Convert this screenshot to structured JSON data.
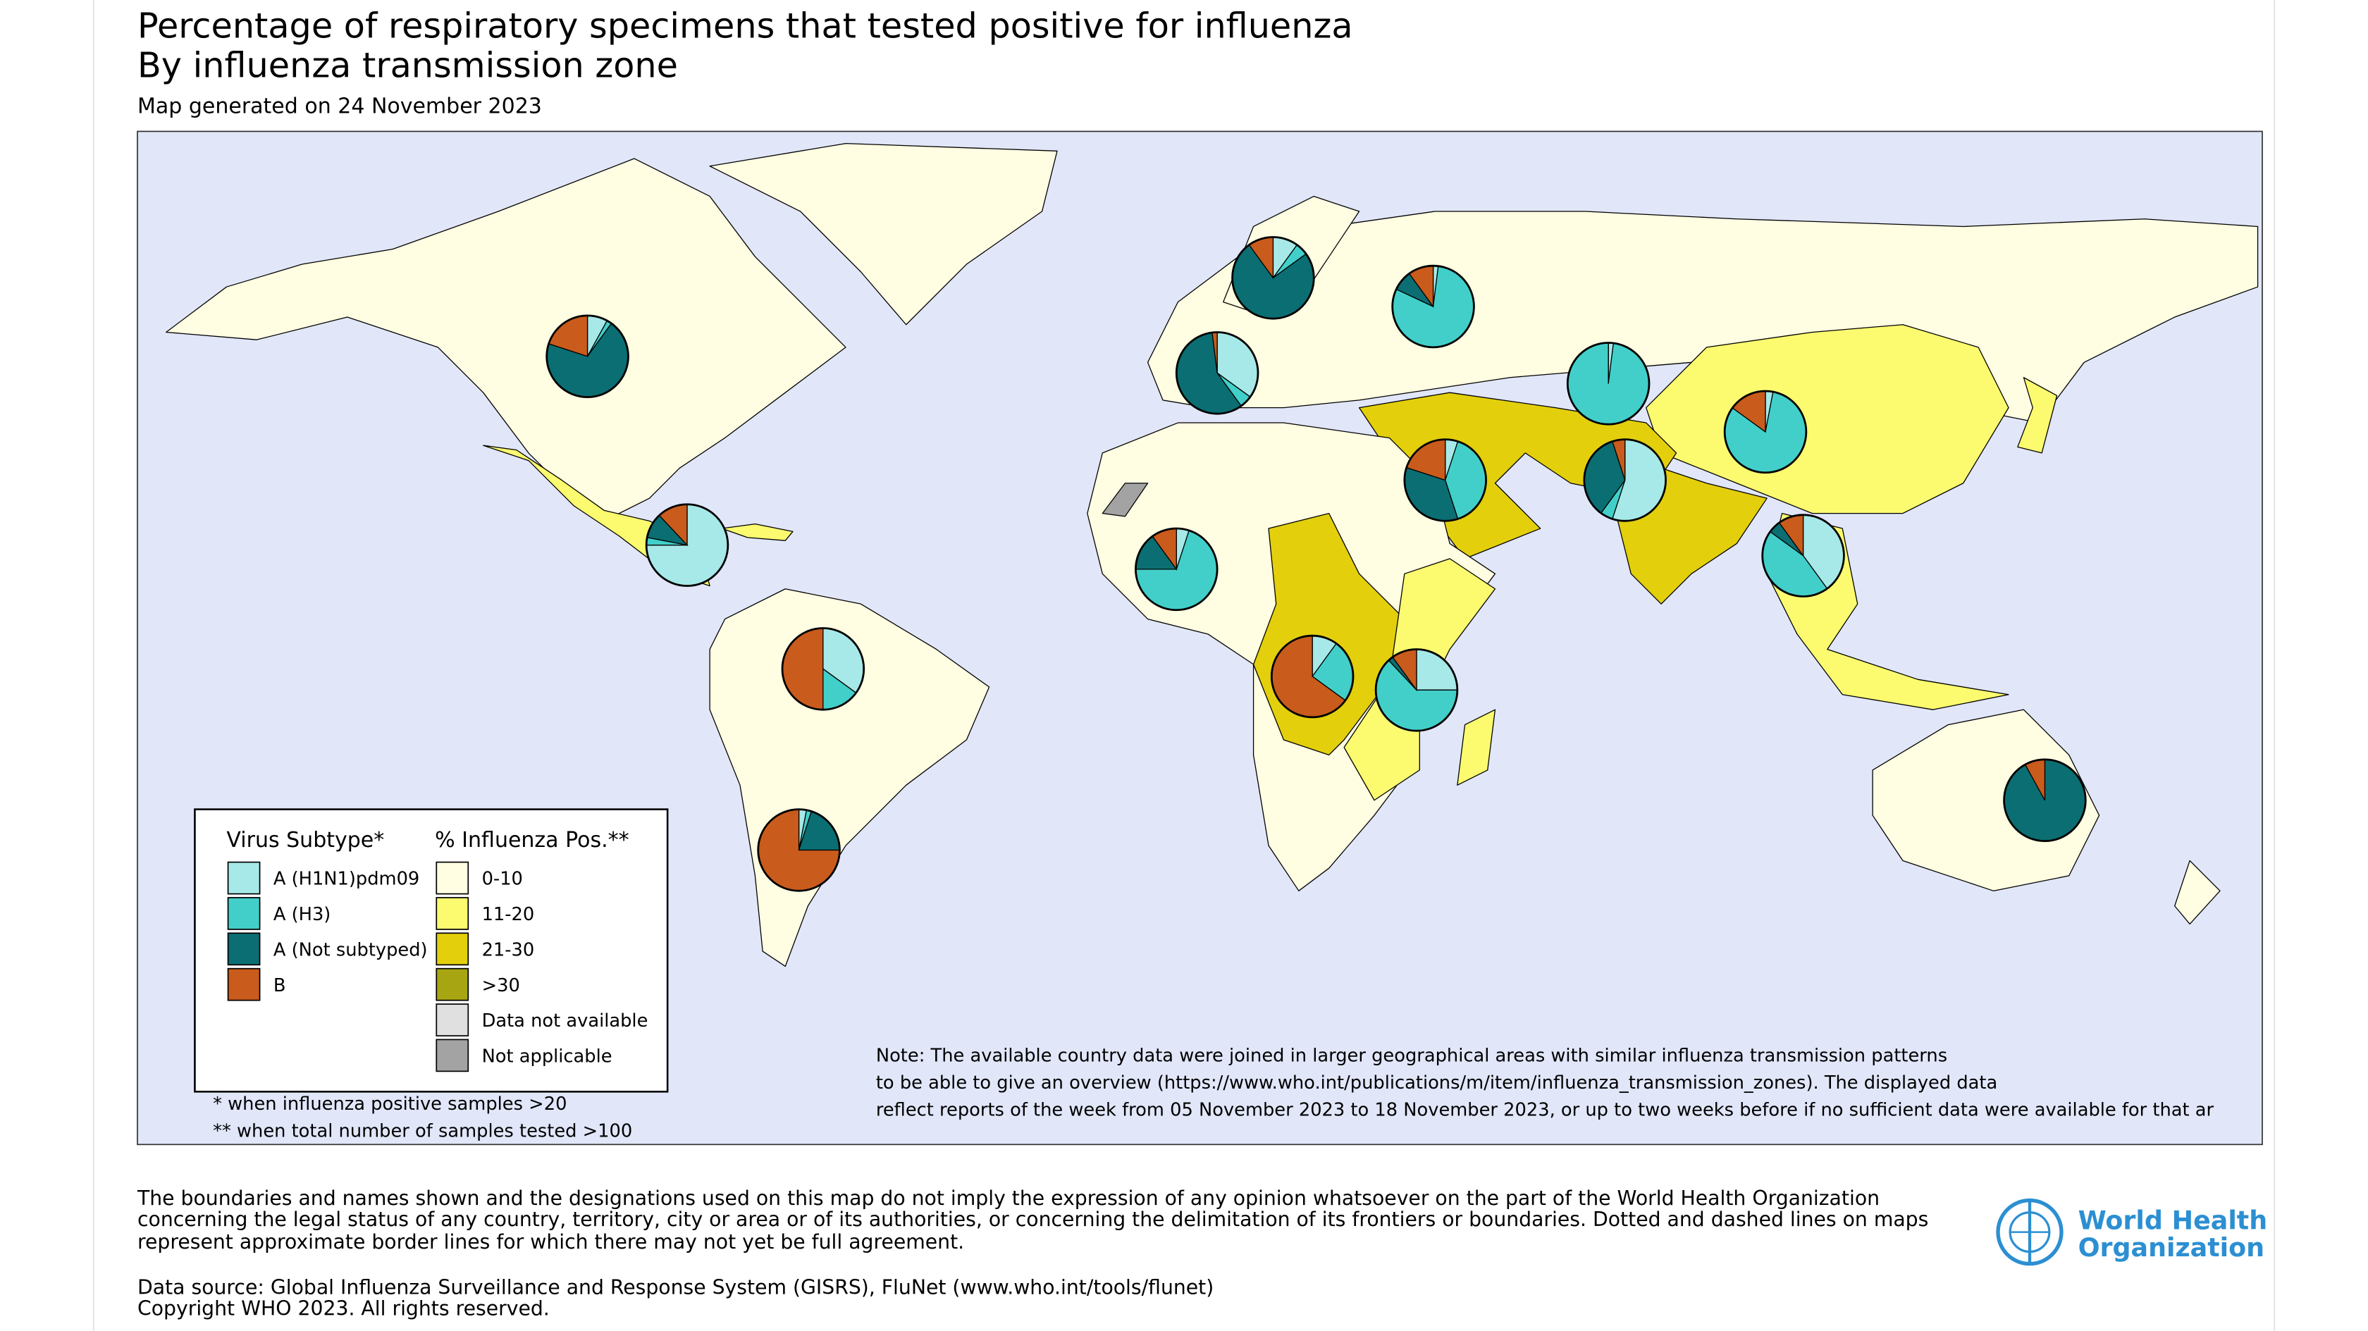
{
  "header": {
    "title_line1": "Percentage of respiratory specimens that tested positive for influenza",
    "title_line2": "By influenza transmission zone",
    "generated": "Map generated on 24 November 2023"
  },
  "map": {
    "subtype_legend_title": "Virus Subtype*",
    "positivity_legend_title": "% Influenza Pos.**",
    "subtypes": [
      {
        "label": "A (H1N1)pdm09",
        "color": "#a6e9e8"
      },
      {
        "label": "A (H3)",
        "color": "#42cfc9"
      },
      {
        "label": "A (Not subtyped)",
        "color": "#0b6e72"
      },
      {
        "label": "B",
        "color": "#c95b1c"
      }
    ],
    "positivity": [
      {
        "label": "0-10",
        "color": "#fffde2"
      },
      {
        "label": "11-20",
        "color": "#fcfb70"
      },
      {
        "label": "21-30",
        "color": "#e3cf0c"
      },
      {
        "label": ">30",
        "color": "#a7a612"
      },
      {
        "label": "Data not available",
        "color": "#e0e0e0"
      },
      {
        "label": "Not applicable",
        "color": "#a3a3a3"
      }
    ],
    "pies": [
      {
        "values": [
          8,
          2,
          70,
          20
        ]
      },
      {
        "values": [
          75,
          3,
          10,
          12
        ]
      },
      {
        "values": [
          35,
          15,
          0,
          50
        ]
      },
      {
        "values": [
          3,
          2,
          20,
          75
        ]
      },
      {
        "values": [
          10,
          5,
          75,
          10
        ]
      },
      {
        "values": [
          2,
          80,
          8,
          10
        ]
      },
      {
        "values": [
          35,
          5,
          58,
          2
        ]
      },
      {
        "values": [
          2,
          98,
          0,
          0
        ]
      },
      {
        "values": [
          5,
          40,
          35,
          20
        ]
      },
      {
        "values": [
          55,
          5,
          35,
          5
        ]
      },
      {
        "values": [
          3,
          82,
          0,
          15
        ]
      },
      {
        "values": [
          40,
          45,
          5,
          10
        ]
      },
      {
        "values": [
          5,
          70,
          15,
          10
        ]
      },
      {
        "values": [
          10,
          25,
          0,
          65
        ]
      },
      {
        "values": [
          25,
          63,
          2,
          10
        ]
      },
      {
        "values": [
          0,
          0,
          92,
          8
        ]
      }
    ],
    "footnotes": [
      "* when influenza positive samples >20",
      "** when total number of samples tested >100"
    ],
    "note": [
      "Note: The available country data were joined in larger geographical areas with similar influenza transmission patterns",
      "to be able to give an overview (https://www.who.int/publications/m/item/influenza_transmission_zones). The displayed data",
      "reflect reports of the week from 05 November 2023 to 18 November 2023, or up to two weeks before if no sufficient data were available for that ar"
    ]
  },
  "footer": {
    "disclaimer": [
      "The boundaries and names shown and the designations used on this map do not imply the expression of any opinion whatsoever on the part of the World Health Organization",
      "concerning the legal status of any country, territory, city or area or of its authorities, or concerning the delimitation of its frontiers or boundaries. Dotted and dashed lines on maps",
      "represent approximate border lines for which there may not yet be full agreement."
    ],
    "source": [
      "Data source: Global Influenza Surveillance and Response System (GISRS), FluNet (www.who.int/tools/flunet)",
      "Copyright WHO 2023. All rights reserved."
    ],
    "logo": [
      "World Health",
      "Organization"
    ]
  }
}
